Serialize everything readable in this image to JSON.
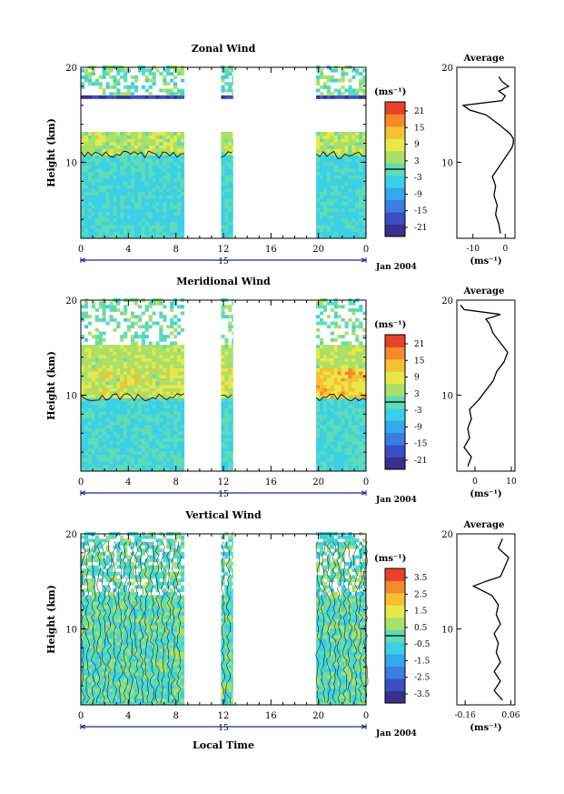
{
  "figure": {
    "xaxis_label": "Local Time",
    "date_label": "Jan 2004"
  },
  "chart_data": [
    {
      "type": "heatmap",
      "title": "Zonal Wind",
      "ylabel": "Height (km)",
      "xlabel": "",
      "xlim": [
        0,
        24
      ],
      "ylim": [
        2,
        20
      ],
      "xticks": [
        "0",
        "4",
        "8",
        "12",
        "16",
        "20",
        "0"
      ],
      "yticks": [
        "10",
        "20"
      ],
      "day_marker": "15",
      "colorbar": {
        "unit": "(ms⁻¹)",
        "ticks": [
          "21",
          "15",
          "9",
          "3",
          "-3",
          "-9",
          "-15",
          "-21"
        ],
        "range": [
          -24,
          24
        ]
      },
      "average_profile": {
        "title": "Average",
        "xlabel": "(ms⁻¹)",
        "xticks": [
          "-10",
          "0"
        ],
        "xlim": [
          -15,
          3
        ],
        "height_km": [
          2.5,
          3.5,
          4.5,
          5.5,
          6.5,
          7.5,
          8.5,
          9.5,
          10.5,
          11.0,
          11.5,
          12.0,
          12.5,
          13.0,
          14.0,
          15.0,
          15.5,
          16.0,
          16.5,
          17.0,
          17.5,
          18.0,
          18.5,
          19.0
        ],
        "value": [
          -1.5,
          -2,
          -3,
          -2.5,
          -3.5,
          -3,
          -4,
          -2,
          0,
          1,
          2,
          2.5,
          2.5,
          1.5,
          -2,
          -6,
          -11,
          -13,
          -1,
          0,
          -2,
          1,
          -1,
          -2
        ]
      }
    },
    {
      "type": "heatmap",
      "title": "Meridional Wind",
      "ylabel": "Height (km)",
      "xlabel": "",
      "xlim": [
        0,
        24
      ],
      "ylim": [
        2,
        20
      ],
      "xticks": [
        "0",
        "4",
        "8",
        "12",
        "16",
        "20",
        "0"
      ],
      "yticks": [
        "10",
        "20"
      ],
      "day_marker": "15",
      "colorbar": {
        "unit": "(ms⁻¹)",
        "ticks": [
          "21",
          "15",
          "9",
          "3",
          "-3",
          "-9",
          "-15",
          "-21"
        ],
        "range": [
          -24,
          24
        ]
      },
      "average_profile": {
        "title": "Average",
        "xlabel": "(ms⁻¹)",
        "xticks": [
          "0",
          "10"
        ],
        "xlim": [
          -5,
          11
        ],
        "height_km": [
          2.5,
          3.5,
          4.5,
          5.5,
          6.5,
          7.5,
          8.5,
          9.5,
          10.5,
          11.5,
          12.5,
          13.5,
          14.5,
          15.5,
          16.5,
          17.5,
          18.0,
          18.5,
          19.0,
          19.5
        ],
        "value": [
          -2,
          -1,
          -3,
          -1.5,
          -2,
          -1,
          -1.5,
          1,
          3,
          5,
          6,
          8,
          9,
          7,
          5,
          4,
          3,
          7,
          -3,
          -4
        ]
      }
    },
    {
      "type": "heatmap",
      "title": "Vertical Wind",
      "ylabel": "Height (km)",
      "xlabel": "Local Time",
      "xlim": [
        0,
        24
      ],
      "ylim": [
        2,
        20
      ],
      "xticks": [
        "0",
        "4",
        "8",
        "12",
        "16",
        "20",
        "0"
      ],
      "yticks": [
        "10",
        "20"
      ],
      "day_marker": "15",
      "colorbar": {
        "unit": "(ms⁻¹)",
        "ticks": [
          "3.5",
          "2.5",
          "1.5",
          "0.5",
          "-0.5",
          "-1.5",
          "-2.5",
          "-3.5"
        ],
        "range": [
          -4,
          4
        ]
      },
      "average_profile": {
        "title": "Average",
        "xlabel": "(ms⁻¹)",
        "xticks": [
          "-0.16",
          "0.06"
        ],
        "xlim": [
          -0.2,
          0.08
        ],
        "height_km": [
          2.5,
          3.5,
          4.5,
          5.5,
          6.5,
          7.5,
          8.5,
          9.5,
          10.5,
          11.5,
          12.5,
          13.5,
          14.5,
          15.0,
          15.5,
          16.5,
          17.5,
          18.5,
          19.5
        ],
        "value": [
          0.02,
          -0.02,
          0.01,
          -0.02,
          0.01,
          -0.01,
          0.0,
          -0.02,
          0.01,
          -0.01,
          0.0,
          -0.03,
          -0.12,
          -0.06,
          0.01,
          0.03,
          0.05,
          0.0,
          0.02
        ]
      }
    }
  ]
}
